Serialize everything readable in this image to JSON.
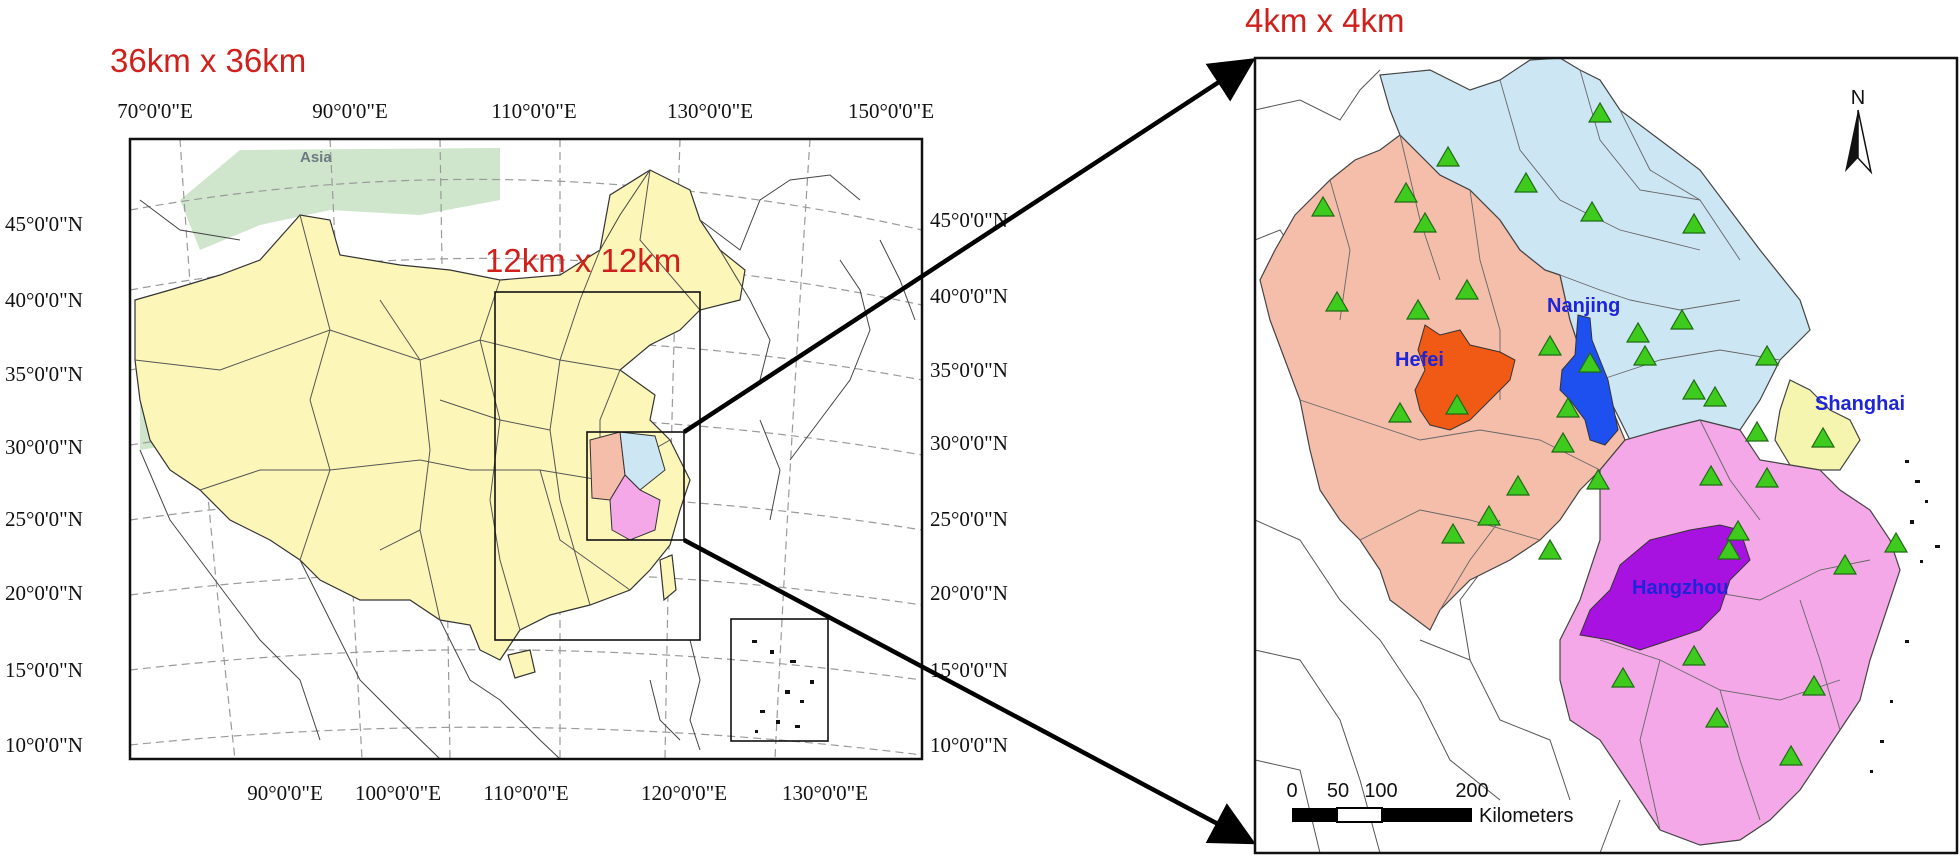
{
  "labels": {
    "domain_outer": "36km x 36km",
    "domain_middle": "12km x 12km",
    "domain_inner": "4km x 4km",
    "asia": "Asia",
    "north": "N",
    "cities": {
      "nanjing": "Nanjing",
      "hefei": "Hefei",
      "shanghai": "Shanghai",
      "hangzhou": "Hangzhou"
    }
  },
  "left_map": {
    "top_lon_ticks": [
      "70°0'0\"E",
      "90°0'0\"E",
      "110°0'0\"E",
      "130°0'0\"E",
      "150°0'0\"E"
    ],
    "bottom_lon_ticks": [
      "90°0'0\"E",
      "100°0'0\"E",
      "110°0'0\"E",
      "120°0'0\"E",
      "130°0'0\"E"
    ],
    "left_lat_ticks": [
      "45°0'0\"N",
      "40°0'0\"N",
      "35°0'0\"N",
      "30°0'0\"N",
      "25°0'0\"N",
      "20°0'0\"N",
      "15°0'0\"N",
      "10°0'0\"N"
    ],
    "right_lat_ticks": [
      "45°0'0\"N",
      "40°0'0\"N",
      "35°0'0\"N",
      "30°0'0\"N",
      "25°0'0\"N",
      "20°0'0\"N",
      "15°0'0\"N",
      "10°0'0\"N"
    ]
  },
  "scale_bar": {
    "ticks": [
      "0",
      "50",
      "100",
      "200"
    ],
    "unit": "Kilometers"
  },
  "colors": {
    "china_fill": "#fdf6b9",
    "anhui_fill": "#f5beab",
    "jiangsu_fill": "#cde6f4",
    "zhejiang_fill": "#f4a8e8",
    "shanghai_fill": "#f5f5b0",
    "hefei_fill": "#f05a14",
    "nanjing_fill": "#1e50f0",
    "hangzhou_fill": "#a812e0",
    "station_fill": "#3ecb1e",
    "domain_label": "#d0201c",
    "city_label": "#1e24d8"
  },
  "icons": [
    "north-arrow-icon",
    "station-triangle-icon"
  ]
}
